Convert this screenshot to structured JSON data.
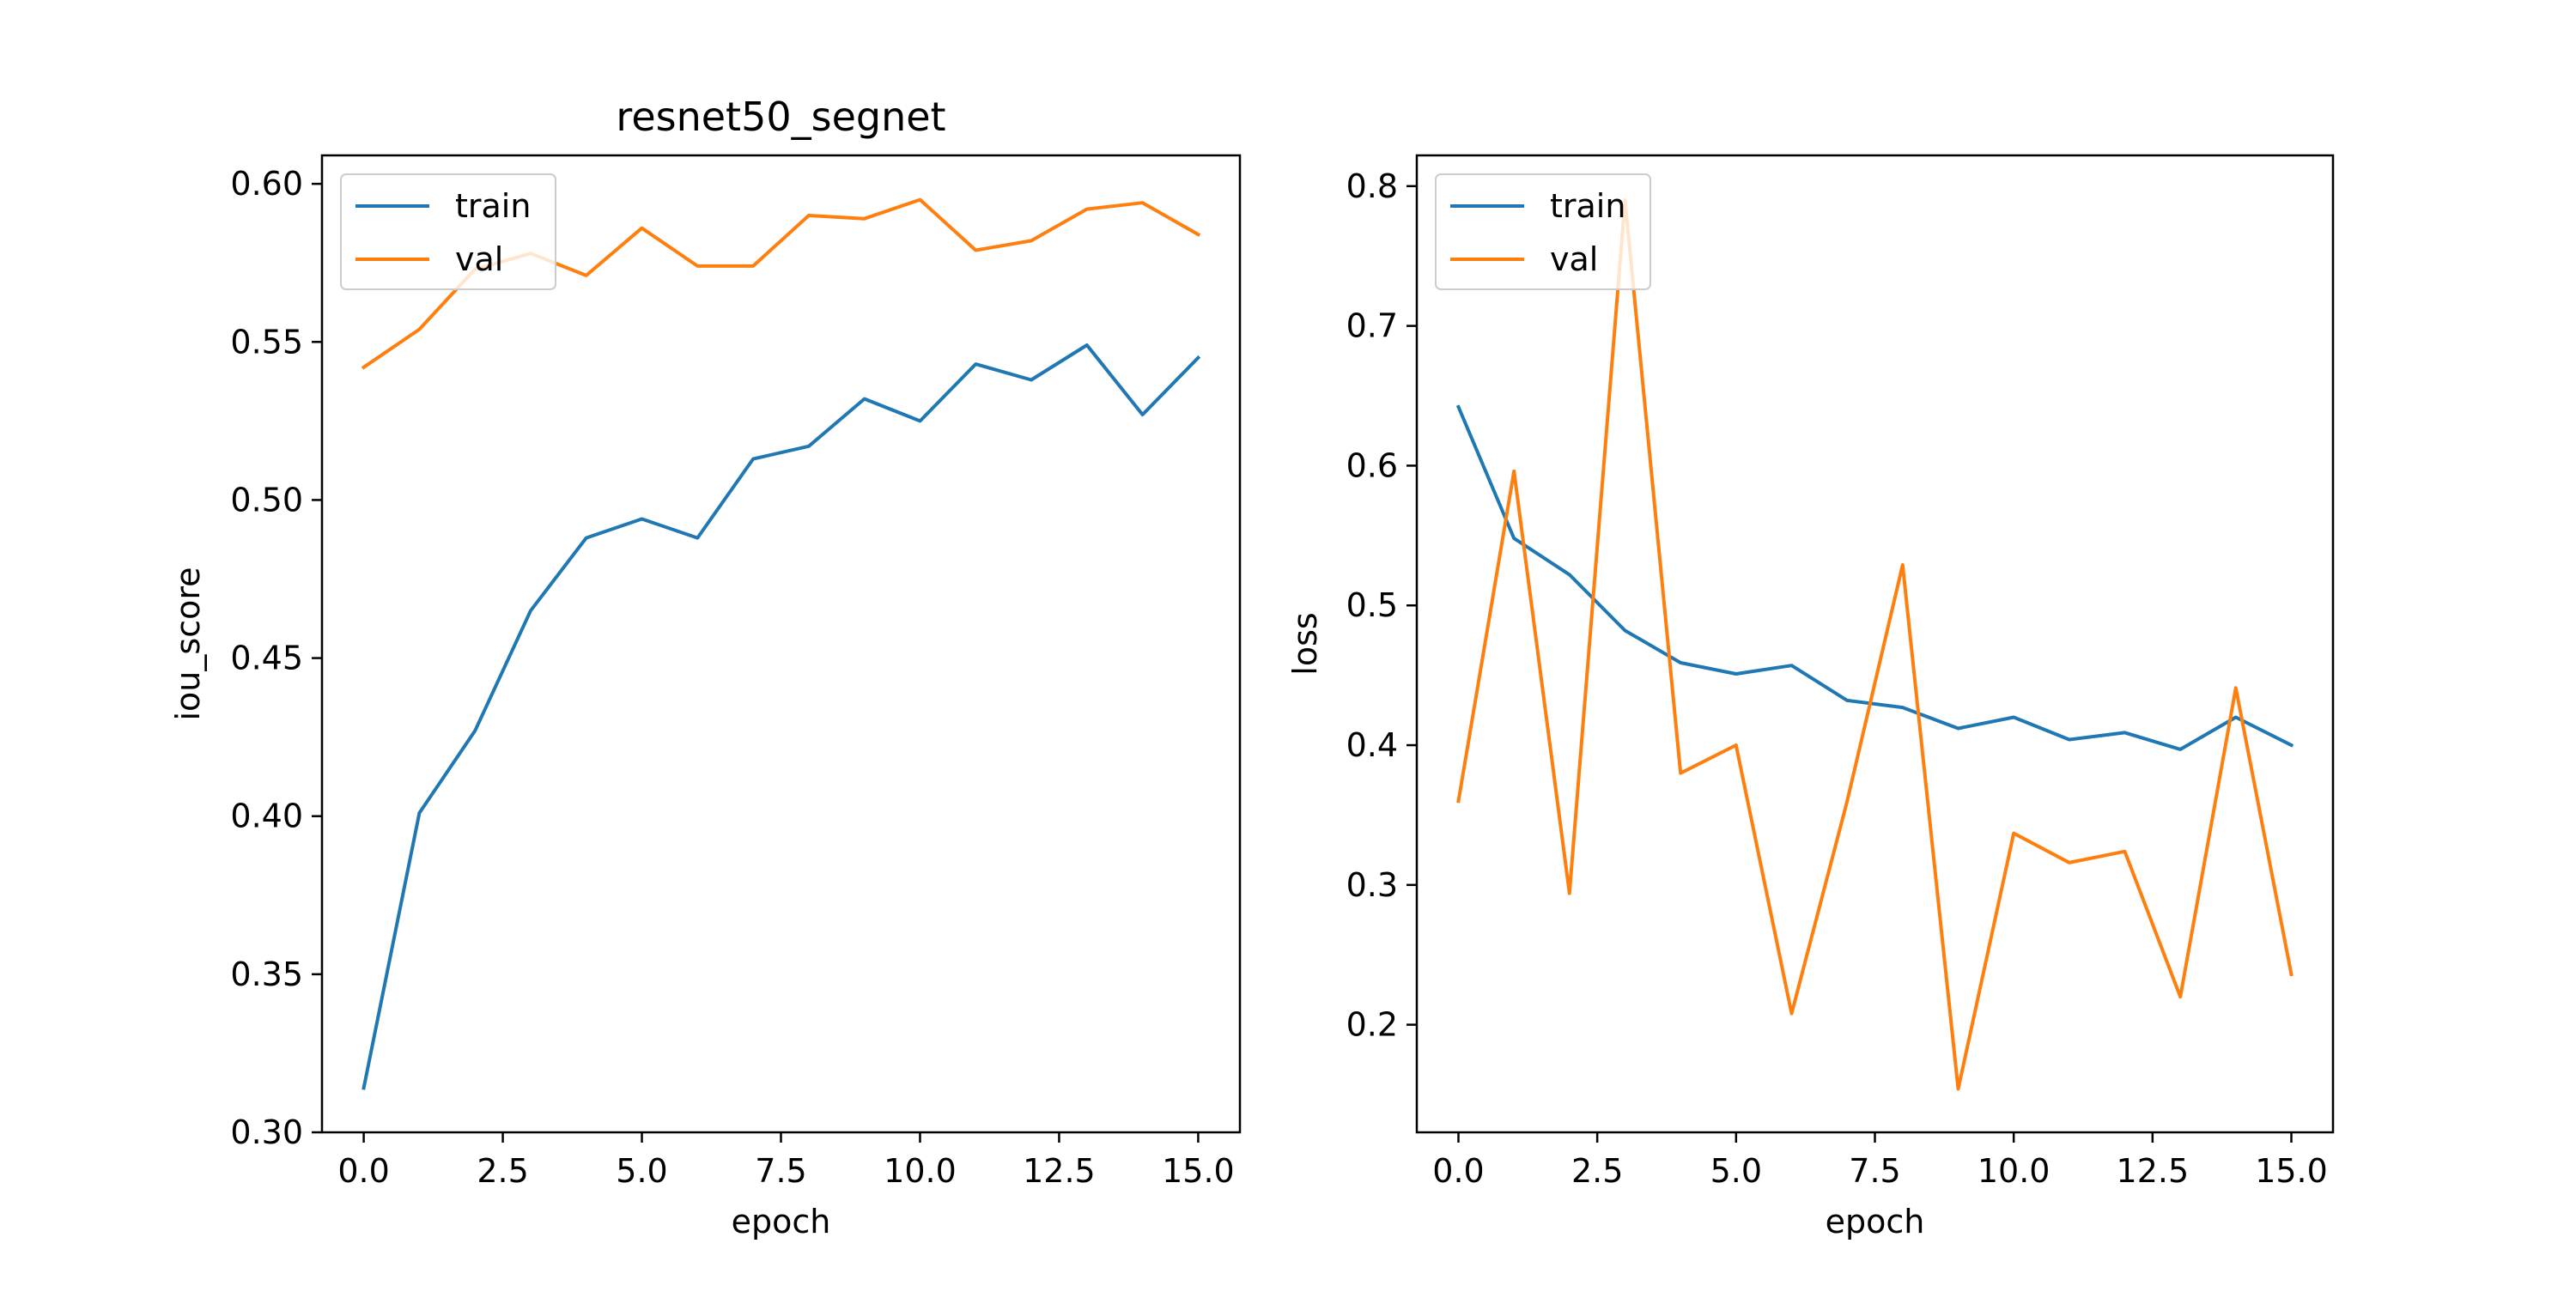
{
  "colors": {
    "train": "#1f77b4",
    "val": "#ff7f0e"
  },
  "chart_data": [
    {
      "type": "line",
      "title": "resnet50_segnet",
      "xlabel": "epoch",
      "ylabel": "iou_score",
      "xlim": [
        -0.75,
        15.75
      ],
      "ylim": [
        0.3,
        0.609
      ],
      "xticks": [
        0,
        2.5,
        5,
        7.5,
        10,
        12.5,
        15
      ],
      "xtick_labels": [
        "0.0",
        "2.5",
        "5.0",
        "7.5",
        "10.0",
        "12.5",
        "15.0"
      ],
      "yticks": [
        0.3,
        0.35,
        0.4,
        0.45,
        0.5,
        0.55,
        0.6
      ],
      "ytick_labels": [
        "0.30",
        "0.35",
        "0.40",
        "0.45",
        "0.50",
        "0.55",
        "0.60"
      ],
      "legend_position": "upper-left",
      "grid": false,
      "x": [
        0,
        1,
        2,
        3,
        4,
        5,
        6,
        7,
        8,
        9,
        10,
        11,
        12,
        13,
        14,
        15
      ],
      "series": [
        {
          "name": "train",
          "color": "#1f77b4",
          "values": [
            0.314,
            0.401,
            0.427,
            0.465,
            0.488,
            0.494,
            0.488,
            0.513,
            0.517,
            0.532,
            0.525,
            0.543,
            0.538,
            0.549,
            0.527,
            0.545
          ]
        },
        {
          "name": "val",
          "color": "#ff7f0e",
          "values": [
            0.542,
            0.554,
            0.573,
            0.578,
            0.571,
            0.586,
            0.574,
            0.574,
            0.59,
            0.589,
            0.595,
            0.579,
            0.582,
            0.592,
            0.594,
            0.584
          ]
        }
      ]
    },
    {
      "type": "line",
      "title": "",
      "xlabel": "epoch",
      "ylabel": "loss",
      "xlim": [
        -0.75,
        15.75
      ],
      "ylim": [
        0.123,
        0.822
      ],
      "xticks": [
        0,
        2.5,
        5,
        7.5,
        10,
        12.5,
        15
      ],
      "xtick_labels": [
        "0.0",
        "2.5",
        "5.0",
        "7.5",
        "10.0",
        "12.5",
        "15.0"
      ],
      "yticks": [
        0.2,
        0.3,
        0.4,
        0.5,
        0.6,
        0.7,
        0.8
      ],
      "ytick_labels": [
        "0.2",
        "0.3",
        "0.4",
        "0.5",
        "0.6",
        "0.7",
        "0.8"
      ],
      "legend_position": "upper-left",
      "grid": false,
      "x": [
        0,
        1,
        2,
        3,
        4,
        5,
        6,
        7,
        8,
        9,
        10,
        11,
        12,
        13,
        14,
        15
      ],
      "series": [
        {
          "name": "train",
          "color": "#1f77b4",
          "values": [
            0.642,
            0.548,
            0.522,
            0.482,
            0.459,
            0.451,
            0.457,
            0.432,
            0.427,
            0.412,
            0.42,
            0.404,
            0.409,
            0.397,
            0.42,
            0.4
          ]
        },
        {
          "name": "val",
          "color": "#ff7f0e",
          "values": [
            0.36,
            0.596,
            0.294,
            0.79,
            0.38,
            0.4,
            0.208,
            0.36,
            0.529,
            0.154,
            0.337,
            0.316,
            0.324,
            0.22,
            0.441,
            0.236
          ]
        }
      ]
    }
  ]
}
